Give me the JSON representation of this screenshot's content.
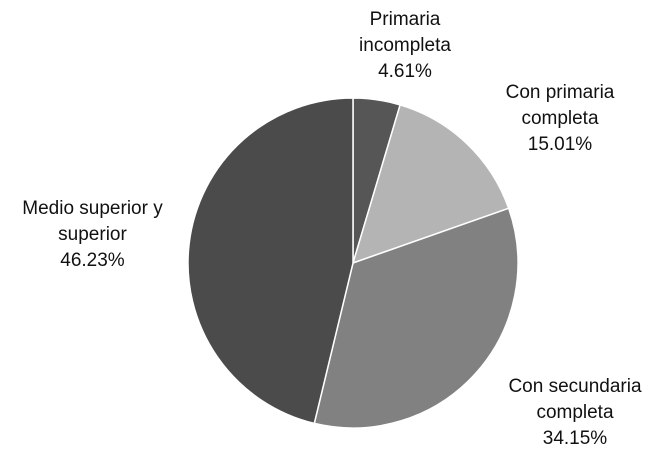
{
  "chart_data": {
    "type": "pie",
    "categories": [
      "Primaria incompleta",
      "Con primaria completa",
      "Con secundaria completa",
      "Medio superior y superior"
    ],
    "values": [
      4.61,
      15.01,
      34.15,
      46.23
    ],
    "value_labels": [
      "4.61%",
      "15.01%",
      "34.15%",
      "46.23%"
    ],
    "colors": [
      "#565656",
      "#b4b4b4",
      "#818181",
      "#4b4b4b"
    ]
  }
}
